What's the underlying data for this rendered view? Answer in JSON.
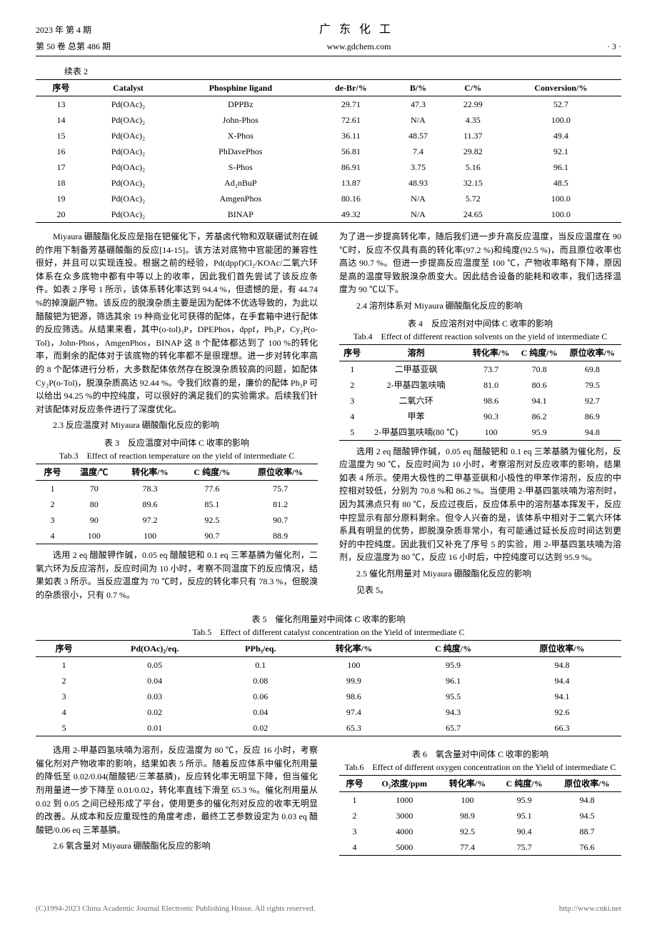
{
  "header": {
    "year_issue": "2023 年 第 4 期",
    "vol_issue": "第 50 卷 总第 486 期",
    "journal": "广 东 化 工",
    "url": "www.gdchem.com",
    "page": "· 3 ·"
  },
  "cont_label": "续表 2",
  "table2": {
    "columns": [
      "序号",
      "Catalyst",
      "Phosphine ligand",
      "de-Br/%",
      "B/%",
      "C/%",
      "Conversion/%"
    ],
    "rows": [
      [
        "13",
        "Pd(OAc)₂",
        "DPPBz",
        "29.71",
        "47.3",
        "22.99",
        "52.7"
      ],
      [
        "14",
        "Pd(OAc)₂",
        "John-Phos",
        "72.61",
        "N/A",
        "4.35",
        "100.0"
      ],
      [
        "15",
        "Pd(OAc)₂",
        "X-Phos",
        "36.11",
        "48.57",
        "11.37",
        "49.4"
      ],
      [
        "16",
        "Pd(OAc)₂",
        "PhDavePhos",
        "56.81",
        "7.4",
        "29.82",
        "92.1"
      ],
      [
        "17",
        "Pd(OAc)₂",
        "S-Phos",
        "86.91",
        "3.75",
        "5.16",
        "96.1"
      ],
      [
        "18",
        "Pd(OAc)₂",
        "Ad₂nBuP",
        "13.87",
        "48.93",
        "32.15",
        "48.5"
      ],
      [
        "19",
        "Pd(OAc)₂",
        "AmgenPhos",
        "80.16",
        "N/A",
        "5.72",
        "100.0"
      ],
      [
        "20",
        "Pd(OAc)₂",
        "BINAP",
        "49.32",
        "N/A",
        "24.65",
        "100.0"
      ]
    ]
  },
  "left": {
    "para1": "Miyaura 硼酸酯化反应是指在钯催化下，芳基卤代物和双联硼试剂在碱的作用下制备芳基硼酸酯的反应[14-15]。该方法对底物中官能团的兼容性很好，并且可以实现连投。根据之前的经验，Pd(dppf)Cl₂/KOAc/二氧六环体系在众多底物中都有中等以上的收率，因此我们首先尝试了该反应条件。如表 2 序号 1 所示，该体系转化率达到 94.4 %，但遗憾的是，有 44.74 %的掉溴副产物。该反应的脱溴杂质主要是因为配体不优选导致的，为此以醋酸钯为钯源，筛选其余 19 种商业化可获得的配体，在手套箱中进行配体的反应筛选。从结果来看，其中(o-tol)₃P，DPEPhos，dppf，Ph₃P，Cy₂P(o-Tol)，John-Phos，AmgenPhos，BINAP 这 8 个配体都达到了 100 %的转化率，而剩余的配体对于该底物的转化率都不是很理想。进一步对转化率高的 8 个配体进行分析，大多数配体依然存在脱溴杂质较高的问题，如配体 Cy₂P(o-Tol)，脱溴杂质高达 92.44 %。令我们欣喜的是，廉价的配体 Ph₃P 可以给出 94.25 %的中控纯度，可以很好的满足我们的实验需求。后续我们针对该配体对反应条件进行了深度优化。",
    "sec23": "2.3 反应温度对 Miyaura 硼酸酯化反应的影响",
    "t3_title": "表 3　反应温度对中间体 C 收率的影响",
    "t3_sub": "Tab.3　Effect of reaction temperature on the yield of intermediate C",
    "para2": "选用 2 eq 醋酸钾作碱，0.05 eq 醋酸钯和 0.1 eq 三苯基膦为催化剂，二氧六环为反应溶剂，反应时间为 10 小时，考察不同温度下的反应情况，结果如表 3 所示。当反应温度为 70 ℃时，反应的转化率只有 78.3 %，但脱溴的杂质很小，只有 0.7 %。"
  },
  "table3": {
    "columns": [
      "序号",
      "温度/℃",
      "转化率/%",
      "C 纯度/%",
      "原位收率/%"
    ],
    "rows": [
      [
        "1",
        "70",
        "78.3",
        "77.6",
        "75.7"
      ],
      [
        "2",
        "80",
        "89.6",
        "85.1",
        "81.2"
      ],
      [
        "3",
        "90",
        "97.2",
        "92.5",
        "90.7"
      ],
      [
        "4",
        "100",
        "100",
        "90.7",
        "88.9"
      ]
    ]
  },
  "right": {
    "para1": "为了进一步提高转化率，随后我们进一步升高反应温度，当反应温度在 90 ℃时，反应不仅具有高的转化率(97.2 %)和纯度(92.5 %)，而且原位收率也高达 90.7 %。但进一步提高反应温度至 100 ℃，产物收率略有下降，原因是高的温度导致脱溴杂质变大。因此结合设备的能耗和收率，我们选择温度为 90 ℃以下。",
    "sec24": "2.4 溶剂体系对 Miyaura 硼酸酯化反应的影响",
    "t4_title": "表 4　反应溶剂对中间体 C 收率的影响",
    "t4_sub": "Tab.4　Effect of different reaction solvents on the yield of intermediate C",
    "para2": "选用 2 eq 醋酸钾作碱，0.05 eq 醋酸钯和 0.1 eq 三苯基膦为催化剂，反应温度为 90 ℃，反应时间为 10 小时，考察溶剂对反应收率的影响，结果如表 4 所示。使用大极性的二甲基亚砜和小极性的甲苯作溶剂，反应的中控相对较低，分别为 70.8 %和 86.2 %。当使用 2-甲基四氢呋喃为溶剂时，因为其沸点只有 80 ℃，反应过夜后，反应体系中的溶剂基本挥发干，反应中控显示有部分原料剩余。但令人兴奋的是，该体系中相对于二氧六环体系具有明显的优势，即脱溴杂质非常小，有可能通过延长反应时间达到更好的中控纯度。因此我们又补充了序号 5 的实验，用 2-甲基四氢呋喃为溶剂，反应温度为 80 ℃，反应 16 小时后，中控纯度可以达到 95.9 %。",
    "sec25": "2.5 催化剂用量对 Miyaura 硼酸酯化反应的影响",
    "see5": "见表 5。"
  },
  "table4": {
    "columns": [
      "序号",
      "溶剂",
      "转化率/%",
      "C 纯度/%",
      "原位收率/%"
    ],
    "rows": [
      [
        "1",
        "二甲基亚砜",
        "73.7",
        "70.8",
        "69.8"
      ],
      [
        "2",
        "2-甲基四氢呋喃",
        "81.0",
        "80.6",
        "79.5"
      ],
      [
        "3",
        "二氧六环",
        "98.6",
        "94.1",
        "92.7"
      ],
      [
        "4",
        "甲苯",
        "90.3",
        "86.2",
        "86.9"
      ],
      [
        "5",
        "2-甲基四氢呋喃(80 ℃)",
        "100",
        "95.9",
        "94.8"
      ]
    ]
  },
  "t5_title": "表 5　催化剂用量对中间体 C 收率的影响",
  "t5_sub": "Tab.5　Effect of different catalyst concentration on the Yield of intermediate C",
  "table5": {
    "columns": [
      "序号",
      "Pd(OAc)₂/eq.",
      "PPh₃/eq.",
      "转化率/%",
      "C 纯度/%",
      "原位收率/%"
    ],
    "rows": [
      [
        "1",
        "0.05",
        "0.1",
        "100",
        "95.9",
        "94.8"
      ],
      [
        "2",
        "0.04",
        "0.08",
        "99.9",
        "96.1",
        "94.4"
      ],
      [
        "3",
        "0.03",
        "0.06",
        "98.6",
        "95.5",
        "94.1"
      ],
      [
        "4",
        "0.02",
        "0.04",
        "97.4",
        "94.3",
        "92.6"
      ],
      [
        "5",
        "0.01",
        "0.02",
        "65.3",
        "65.7",
        "66.3"
      ]
    ]
  },
  "left2": {
    "para1": "选用 2-甲基四氢呋喃为溶剂，反应温度为 80 ℃，反应 16 小时，考察催化剂对产物收率的影响，结果如表 5 所示。随着反应体系中催化剂用量的降低至 0.02/0.04(醋酸钯/三苯基膦)，反应转化率无明显下降，但当催化剂用量进一步下降至 0.01/0.02，转化率直线下滑至 65.3 %。催化剂用量从 0.02 到 0.05 之间已经形成了平台，使用更多的催化剂对反应的收率无明显的改善。从成本和反应重现性的角度考虑，最终工艺参数设定为 0.03 eq 醋酸钯/0.06 eq 三苯基膦。",
    "sec26": "2.6 氧含量对 Miyaura 硼酸酯化反应的影响"
  },
  "right2": {
    "t6_title": "表 6　氧含量对中间体 C 收率的影响",
    "t6_sub": "Tab.6　Effect of different oxygen concentration on the Yield of intermediate C"
  },
  "table6": {
    "columns": [
      "序号",
      "O₂浓度/ppm",
      "转化率/%",
      "C 纯度/%",
      "原位收率/%"
    ],
    "rows": [
      [
        "1",
        "1000",
        "100",
        "95.9",
        "94.8"
      ],
      [
        "2",
        "3000",
        "98.9",
        "95.1",
        "94.5"
      ],
      [
        "3",
        "4000",
        "92.5",
        "90.4",
        "88.7"
      ],
      [
        "4",
        "5000",
        "77.4",
        "75.7",
        "76.6"
      ]
    ]
  },
  "footer": {
    "left": "(C)1994-2023 China Academic Journal Electronic Publishing House. All rights reserved.",
    "right": "http://www.cnki.net"
  }
}
